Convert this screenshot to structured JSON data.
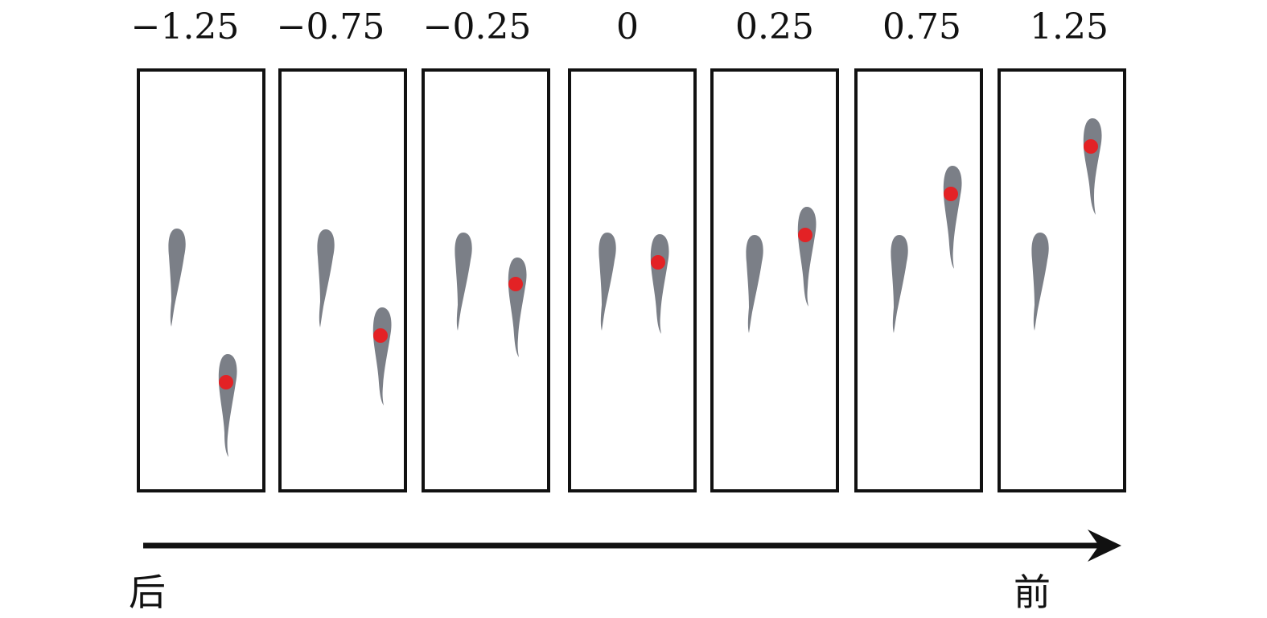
{
  "labels": [
    "−1.25",
    "−0.75",
    "−0.25",
    "0",
    "0.25",
    "0.75",
    "1.25"
  ],
  "direction": {
    "start_label": "后",
    "end_label": "前"
  },
  "colors": {
    "frame": "#111111",
    "fish_body": "#7b7f87",
    "marker": "#e32225"
  }
}
